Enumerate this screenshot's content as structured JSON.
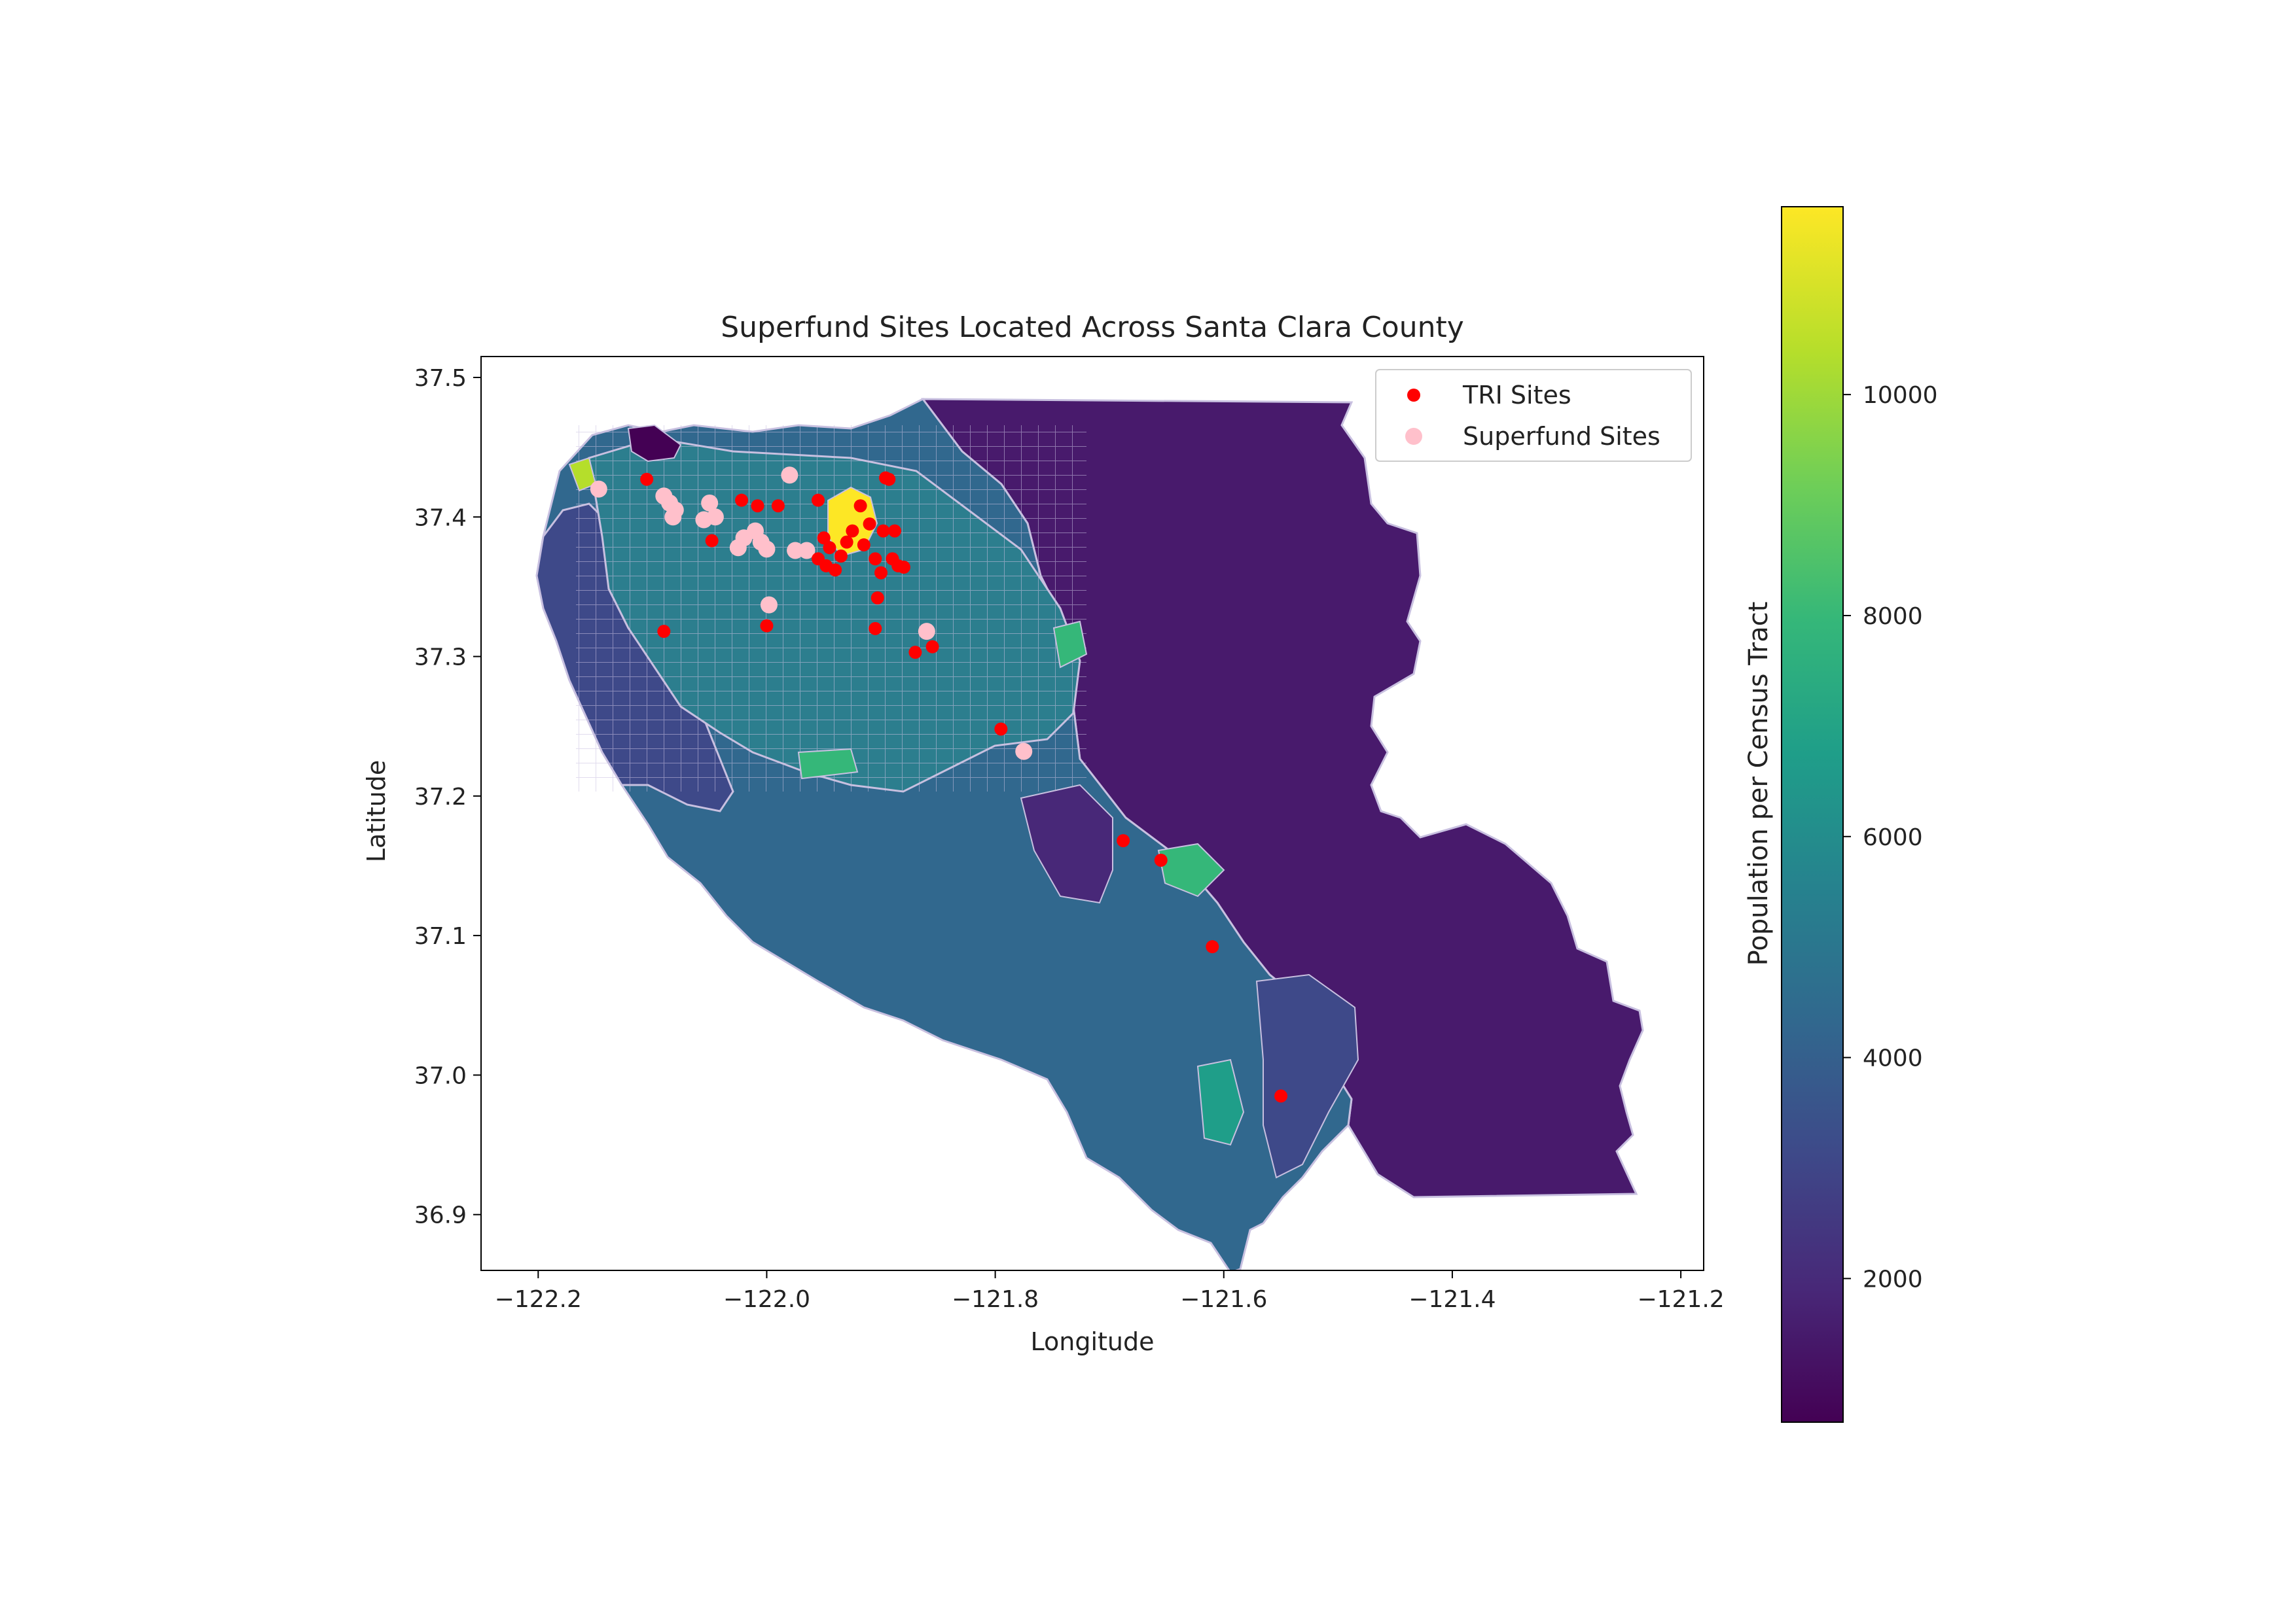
{
  "chart_data": {
    "type": "scatter",
    "title": "Superfund Sites Located Across Santa Clara County",
    "xlabel": "Longitude",
    "ylabel": "Latitude",
    "xlim": [
      -122.25,
      -121.18
    ],
    "ylim": [
      36.86,
      37.515
    ],
    "x_ticks": [
      -122.2,
      -122.0,
      -121.8,
      -121.6,
      -121.4,
      -121.2
    ],
    "x_tick_labels": [
      "−122.2",
      "−122.0",
      "−121.8",
      "−121.6",
      "−121.4",
      "−121.2"
    ],
    "y_ticks": [
      36.9,
      37.0,
      37.1,
      37.2,
      37.3,
      37.4,
      37.5
    ],
    "y_tick_labels": [
      "36.9",
      "37.0",
      "37.1",
      "37.2",
      "37.3",
      "37.4",
      "37.5"
    ],
    "grid": false,
    "legend_position": "upper-right",
    "basemap": "Santa Clara County census tracts choropleth",
    "series": [
      {
        "name": "TRI Sites",
        "color": "#ff0000",
        "points": [
          [
            -122.105,
            37.427
          ],
          [
            -122.09,
            37.318
          ],
          [
            -122.048,
            37.383
          ],
          [
            -122.022,
            37.412
          ],
          [
            -122.008,
            37.408
          ],
          [
            -122.0,
            37.322
          ],
          [
            -121.99,
            37.408
          ],
          [
            -121.955,
            37.412
          ],
          [
            -121.95,
            37.385
          ],
          [
            -121.945,
            37.378
          ],
          [
            -121.955,
            37.37
          ],
          [
            -121.948,
            37.365
          ],
          [
            -121.94,
            37.362
          ],
          [
            -121.935,
            37.372
          ],
          [
            -121.93,
            37.382
          ],
          [
            -121.925,
            37.39
          ],
          [
            -121.918,
            37.408
          ],
          [
            -121.915,
            37.38
          ],
          [
            -121.91,
            37.395
          ],
          [
            -121.905,
            37.37
          ],
          [
            -121.903,
            37.342
          ],
          [
            -121.905,
            37.32
          ],
          [
            -121.9,
            37.36
          ],
          [
            -121.898,
            37.39
          ],
          [
            -121.896,
            37.428
          ],
          [
            -121.893,
            37.427
          ],
          [
            -121.89,
            37.37
          ],
          [
            -121.888,
            37.39
          ],
          [
            -121.885,
            37.365
          ],
          [
            -121.88,
            37.364
          ],
          [
            -121.87,
            37.303
          ],
          [
            -121.855,
            37.307
          ],
          [
            -121.795,
            37.248
          ],
          [
            -121.688,
            37.168
          ],
          [
            -121.655,
            37.154
          ],
          [
            -121.61,
            37.092
          ],
          [
            -121.55,
            36.985
          ]
        ]
      },
      {
        "name": "Superfund Sites",
        "color": "#ffc0cb",
        "points": [
          [
            -122.147,
            37.42
          ],
          [
            -122.09,
            37.415
          ],
          [
            -122.085,
            37.41
          ],
          [
            -122.082,
            37.4
          ],
          [
            -122.08,
            37.405
          ],
          [
            -122.055,
            37.398
          ],
          [
            -122.05,
            37.41
          ],
          [
            -122.045,
            37.4
          ],
          [
            -122.025,
            37.378
          ],
          [
            -122.02,
            37.385
          ],
          [
            -122.01,
            37.39
          ],
          [
            -122.005,
            37.382
          ],
          [
            -122.0,
            37.377
          ],
          [
            -121.998,
            37.337
          ],
          [
            -121.98,
            37.43
          ],
          [
            -121.975,
            37.376
          ],
          [
            -121.965,
            37.376
          ],
          [
            -121.86,
            37.318
          ],
          [
            -121.775,
            37.232
          ]
        ]
      }
    ],
    "colorbar": {
      "label": "Population per Census Tract",
      "range": [
        700,
        11700
      ],
      "ticks": [
        2000,
        4000,
        6000,
        8000,
        10000
      ],
      "tick_labels": [
        "2000",
        "4000",
        "6000",
        "8000",
        "10000"
      ],
      "colormap": "viridis",
      "colors": [
        "#440154",
        "#482878",
        "#3e4989",
        "#31688e",
        "#26828e",
        "#1f9e89",
        "#35b779",
        "#6ece58",
        "#b5de2b",
        "#fde725"
      ]
    }
  }
}
